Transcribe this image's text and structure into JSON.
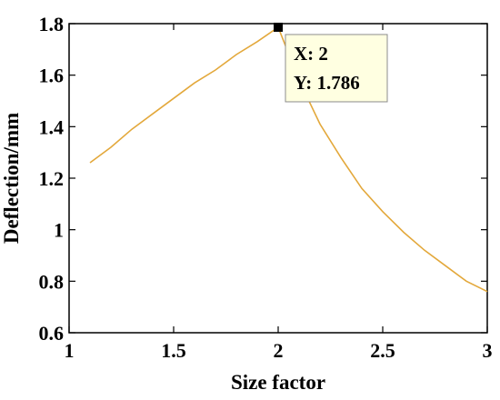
{
  "chart_data": {
    "type": "line",
    "xlabel": "Size factor",
    "ylabel": "Deflection/mm",
    "xlim": [
      1,
      3
    ],
    "ylim": [
      0.6,
      1.8
    ],
    "xticks": [
      "1",
      "1.5",
      "2",
      "2.5",
      "3"
    ],
    "yticks": [
      "0.6",
      "0.8",
      "1",
      "1.2",
      "1.4",
      "1.6",
      "1.8"
    ],
    "grid": false,
    "line_color": "#E3A83B",
    "series": [
      {
        "x": [
          1.1,
          1.2,
          1.3,
          1.4,
          1.5,
          1.6,
          1.7,
          1.8,
          1.9,
          2.0,
          2.1,
          2.2,
          2.3,
          2.4,
          2.5,
          2.6,
          2.7,
          2.8,
          2.9,
          3.0
        ],
        "values": [
          1.26,
          1.32,
          1.39,
          1.45,
          1.51,
          1.57,
          1.62,
          1.68,
          1.73,
          1.786,
          1.58,
          1.41,
          1.28,
          1.16,
          1.07,
          0.99,
          0.92,
          0.86,
          0.8,
          0.76
        ]
      }
    ],
    "datatip": {
      "x": 2,
      "y": 1.786,
      "x_label": "X: 2",
      "y_label": "Y: 1.786"
    }
  }
}
